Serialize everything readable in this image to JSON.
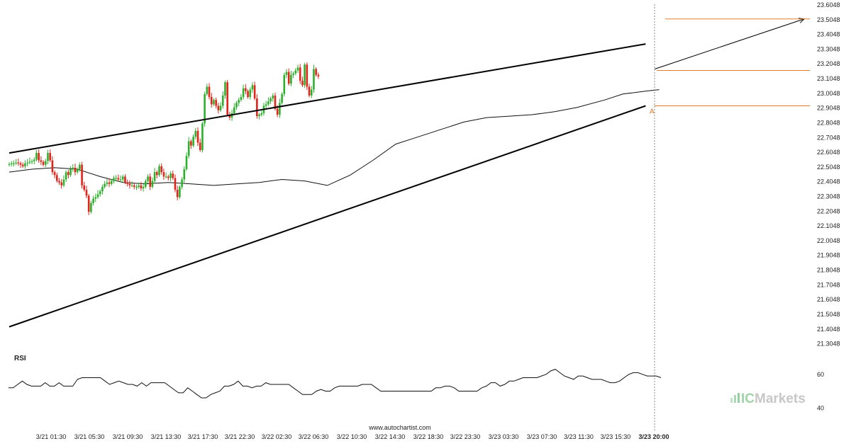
{
  "chart_data": {
    "type": "candlestick",
    "source_text": "www.autochartist.com",
    "brand": {
      "prefix": "IC",
      "name": "Markets"
    },
    "y_axis": {
      "ylim": [
        21.2548,
        23.6048
      ],
      "ticks": [
        "23.6048",
        "23.5048",
        "23.4048",
        "23.3048",
        "23.2048",
        "23.1048",
        "23.0048",
        "22.9048",
        "22.8048",
        "22.7048",
        "22.6048",
        "22.5048",
        "22.4048",
        "22.3048",
        "22.2048",
        "22.1048",
        "22.0048",
        "21.9048",
        "21.8048",
        "21.7048",
        "21.6048",
        "21.5048",
        "21.4048",
        "21.3048"
      ]
    },
    "x_axis": {
      "ticks": [
        "3/21 01:30",
        "3/21 05:30",
        "3/21 09:30",
        "3/21 13:30",
        "3/21 17:30",
        "3/21 22:30",
        "3/22 02:30",
        "3/22 06:30",
        "3/22 10:30",
        "3/22 14:30",
        "3/22 18:30",
        "3/22 23:30",
        "3/23 03:30",
        "3/23 07:30",
        "3/23 11:30",
        "3/23 15:30",
        "3/23 20:00"
      ],
      "current_tick": "3/23 20:00"
    },
    "closes": [
      22.525,
      22.53,
      22.53,
      22.535,
      22.53,
      22.52,
      22.51,
      22.53,
      22.535,
      22.54,
      22.545,
      22.555,
      22.6,
      22.55,
      22.54,
      22.52,
      22.545,
      22.6,
      22.55,
      22.47,
      22.45,
      22.41,
      22.4,
      22.38,
      22.42,
      22.47,
      22.45,
      22.49,
      22.5,
      22.47,
      22.49,
      22.52,
      22.38,
      22.35,
      22.31,
      22.2,
      22.26,
      22.29,
      22.3,
      22.32,
      22.34,
      22.37,
      22.39,
      22.4,
      22.39,
      22.41,
      22.43,
      22.43,
      22.42,
      22.42,
      22.44,
      22.4,
      22.39,
      22.38,
      22.38,
      22.37,
      22.37,
      22.38,
      22.36,
      22.37,
      22.41,
      22.44,
      22.37,
      22.41,
      22.47,
      22.45,
      22.51,
      22.47,
      22.44,
      22.44,
      22.43,
      22.46,
      22.43,
      22.35,
      22.3,
      22.37,
      22.42,
      22.49,
      22.58,
      22.68,
      22.65,
      22.71,
      22.75,
      22.67,
      22.62,
      22.8,
      23.0,
      23.05,
      22.98,
      22.93,
      22.96,
      22.92,
      22.89,
      22.92,
      22.99,
      23.08,
      22.86,
      22.84,
      22.87,
      22.91,
      22.94,
      22.96,
      22.98,
      23.04,
      23.02,
      22.98,
      23.03,
      23.06,
      22.97,
      22.85,
      22.86,
      22.87,
      22.92,
      22.93,
      22.95,
      22.97,
      22.99,
      22.9,
      22.86,
      22.94,
      23.0,
      23.13,
      23.15,
      23.07,
      23.13,
      23.14,
      23.16,
      23.18,
      23.09,
      23.06,
      23.2,
      23.05,
      22.99,
      23.03,
      23.17,
      23.13,
      23.12
    ],
    "moving_average_points": [
      [
        0,
        22.47
      ],
      [
        10,
        22.49
      ],
      [
        20,
        22.5
      ],
      [
        30,
        22.49
      ],
      [
        40,
        22.44
      ],
      [
        50,
        22.4
      ],
      [
        60,
        22.39
      ],
      [
        70,
        22.4
      ],
      [
        80,
        22.39
      ],
      [
        90,
        22.38
      ],
      [
        100,
        22.39
      ],
      [
        110,
        22.4
      ],
      [
        120,
        22.42
      ],
      [
        130,
        22.41
      ],
      [
        140,
        22.38
      ],
      [
        150,
        22.45
      ],
      [
        160,
        22.55
      ],
      [
        170,
        22.66
      ],
      [
        178,
        22.7
      ],
      [
        190,
        22.76
      ],
      [
        200,
        22.81
      ],
      [
        210,
        22.84
      ],
      [
        220,
        22.85
      ],
      [
        230,
        22.86
      ],
      [
        240,
        22.88
      ],
      [
        250,
        22.91
      ],
      [
        262,
        22.96
      ],
      [
        270,
        23.0
      ],
      [
        280,
        23.02
      ],
      [
        286,
        23.03
      ]
    ],
    "resistance_line": [
      [
        0,
        22.6
      ],
      [
        280,
        23.34
      ]
    ],
    "support_line": [
      [
        0,
        21.42
      ],
      [
        280,
        22.92
      ]
    ],
    "projection_arrow": [
      [
        284,
        23.17
      ],
      [
        346,
        23.51
      ]
    ],
    "target_level": 23.51,
    "level_upper": 23.16,
    "level_lower": 22.92,
    "point_label": "A",
    "rsi": {
      "title": "RSI",
      "ticks": [
        "60",
        "40"
      ],
      "range": [
        30,
        70
      ],
      "values": [
        52,
        52,
        54,
        56,
        54,
        53,
        53,
        53,
        55,
        53,
        53,
        55,
        53,
        53,
        53,
        57,
        58,
        58,
        58,
        58,
        58,
        56,
        54,
        55,
        56,
        55,
        54,
        54,
        53,
        55,
        53,
        55,
        55,
        55,
        55,
        53,
        51,
        49,
        49,
        52,
        50,
        48,
        46,
        46,
        48,
        49,
        50,
        53,
        53,
        54,
        56,
        53,
        53,
        52,
        53,
        53,
        55,
        54,
        54,
        54,
        54,
        54,
        52,
        50,
        48,
        48,
        48,
        50,
        51,
        50,
        50,
        52,
        53,
        53,
        53,
        53,
        53,
        54,
        54,
        54,
        52,
        50,
        50,
        50,
        50,
        50,
        50,
        50,
        50,
        50,
        50,
        50,
        50,
        52,
        52,
        53,
        53,
        52,
        50,
        50,
        50,
        50,
        50,
        52,
        53,
        55,
        55,
        53,
        54,
        56,
        56,
        57,
        58,
        58,
        58,
        58,
        59,
        60,
        62,
        63,
        61,
        59,
        58,
        57,
        59,
        59,
        58,
        57,
        57,
        57,
        56,
        55,
        55,
        56,
        58,
        60,
        61,
        61,
        60,
        59,
        59,
        59,
        58
      ]
    }
  }
}
